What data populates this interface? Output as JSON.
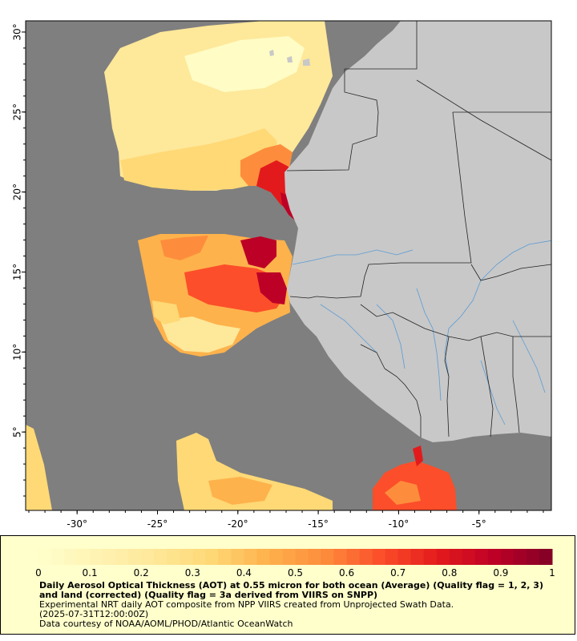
{
  "map": {
    "lon_ticks": [
      {
        "value": -30,
        "label": "-30°"
      },
      {
        "value": -25,
        "label": "-25°"
      },
      {
        "value": -20,
        "label": "-20°"
      },
      {
        "value": -15,
        "label": "-15°"
      },
      {
        "value": -10,
        "label": "-10°"
      },
      {
        "value": -5,
        "label": "-5°"
      }
    ],
    "lat_ticks": [
      {
        "value": 30,
        "label": "30°"
      },
      {
        "value": 25,
        "label": "25°"
      },
      {
        "value": 20,
        "label": "20°"
      },
      {
        "value": 15,
        "label": "15°"
      },
      {
        "value": 10,
        "label": "10°"
      },
      {
        "value": 5,
        "label": "5°"
      }
    ],
    "lon_range": [
      -33.2,
      -0.5
    ],
    "lat_range": [
      0.1,
      30.7
    ],
    "colors": {
      "ocean_nodata": "#7f7f7f",
      "land": "#c8c8c8",
      "borders": "#222222",
      "rivers": "#5a9bd5"
    }
  },
  "colorbar": {
    "range": [
      0,
      1
    ],
    "ticks": [
      {
        "value": 0,
        "label": "0"
      },
      {
        "value": 0.1,
        "label": "0.1"
      },
      {
        "value": 0.2,
        "label": "0.2"
      },
      {
        "value": 0.3,
        "label": "0.3"
      },
      {
        "value": 0.4,
        "label": "0.4"
      },
      {
        "value": 0.5,
        "label": "0.5"
      },
      {
        "value": 0.6,
        "label": "0.6"
      },
      {
        "value": 0.7,
        "label": "0.7"
      },
      {
        "value": 0.8,
        "label": "0.8"
      },
      {
        "value": 0.9,
        "label": "0.9"
      },
      {
        "value": 1,
        "label": "1"
      }
    ],
    "colors": [
      "#ffffcc",
      "#fff3b3",
      "#fee89a",
      "#fed976",
      "#feb24c",
      "#fd8d3c",
      "#fc4e2a",
      "#e31a1c",
      "#bd0026",
      "#800026"
    ]
  },
  "caption": {
    "title": "Daily Aerosol Optical Thickness (AOT) at 0.55 micron for both ocean (Average) (Quality flag = 1, 2, 3) and land (corrected) (Quality flag = 3a derived from VIIRS on SNPP)",
    "line1": "Experimental NRT daily AOT composite from NPP VIIRS created from Unprojected Swath Data.",
    "line2": "(2025-07-31T12:00:00Z)",
    "line3": "Data courtesy of NOAA/AOML/PHOD/Atlantic OceanWatch"
  }
}
